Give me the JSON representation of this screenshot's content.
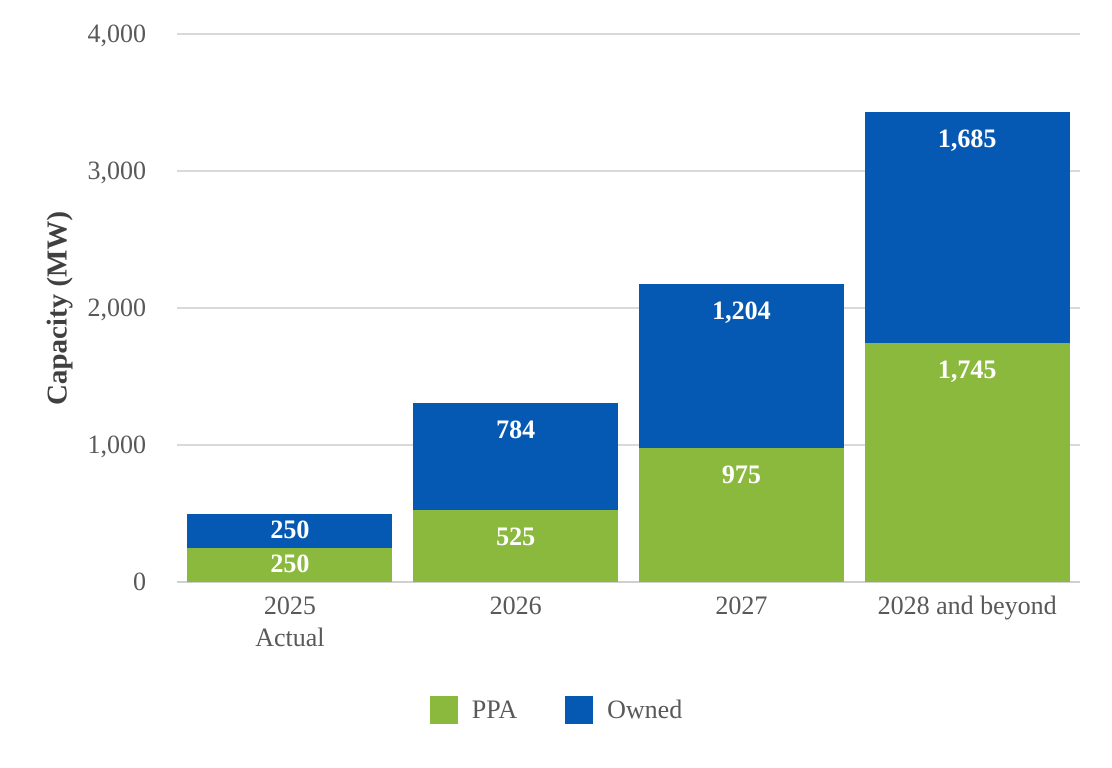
{
  "chart_data": {
    "type": "bar",
    "stacked": true,
    "title": "",
    "xlabel": "",
    "ylabel": "Capacity (MW)",
    "ylim": [
      0,
      4000
    ],
    "yticks": [
      0,
      1000,
      2000,
      3000,
      4000
    ],
    "ytick_labels": [
      "0",
      "1,000",
      "2,000",
      "3,000",
      "4,000"
    ],
    "categories": [
      "2025 Actual",
      "2026",
      "2027",
      "2028 and beyond"
    ],
    "category_display_lines": [
      [
        "2025",
        "Actual"
      ],
      [
        "2026"
      ],
      [
        "2027"
      ],
      [
        "2028 and beyond"
      ]
    ],
    "series": [
      {
        "name": "PPA",
        "color": "#8ab93d",
        "values": [
          250,
          525,
          975,
          1745
        ],
        "labels": [
          "250",
          "525",
          "975",
          "1,745"
        ]
      },
      {
        "name": "Owned",
        "color": "#0659b2",
        "values": [
          250,
          784,
          1204,
          1685
        ],
        "labels": [
          "250",
          "784",
          "1,204",
          "1,685"
        ]
      }
    ],
    "legend": {
      "position": "bottom-center",
      "entries": [
        "PPA",
        "Owned"
      ]
    },
    "grid": true,
    "colors": {
      "gridline": "#d9d9d9",
      "axis_line": "#d0d0d0",
      "tick_text": "#595959",
      "axis_title_text": "#404040",
      "data_label_text": "#ffffff",
      "background": "#ffffff"
    }
  }
}
